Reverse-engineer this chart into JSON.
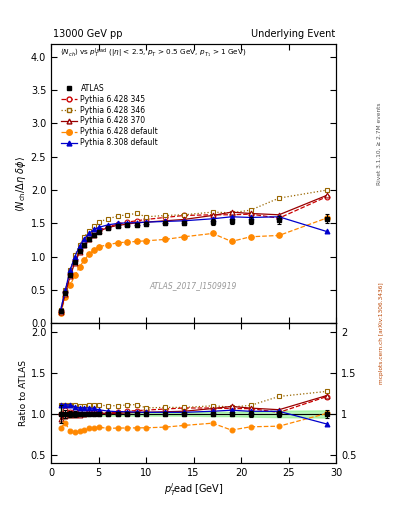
{
  "title_left": "13000 GeV pp",
  "title_right": "Underlying Event",
  "annotation": "ATLAS_2017_I1509919",
  "rivet_label": "Rivet 3.1.10, ≥ 2.7M events",
  "arxiv_label": "mcplots.cern.ch [arXiv:1306.3436]",
  "xlim": [
    0,
    30
  ],
  "main_ylim": [
    0,
    4.2
  ],
  "ratio_ylim": [
    0.4,
    2.1
  ],
  "atlas_x": [
    1.0,
    1.5,
    2.0,
    2.5,
    3.0,
    3.5,
    4.0,
    4.5,
    5.0,
    6.0,
    7.0,
    8.0,
    9.0,
    10.0,
    12.0,
    14.0,
    17.0,
    19.0,
    21.0,
    24.0,
    29.0
  ],
  "atlas_y": [
    0.18,
    0.45,
    0.72,
    0.92,
    1.08,
    1.18,
    1.26,
    1.32,
    1.37,
    1.43,
    1.46,
    1.47,
    1.48,
    1.49,
    1.5,
    1.51,
    1.52,
    1.53,
    1.54,
    1.55,
    1.57
  ],
  "atlas_yerr": [
    0.02,
    0.02,
    0.03,
    0.03,
    0.03,
    0.03,
    0.03,
    0.03,
    0.03,
    0.03,
    0.03,
    0.03,
    0.03,
    0.03,
    0.03,
    0.03,
    0.04,
    0.04,
    0.05,
    0.06,
    0.07
  ],
  "py6_345_x": [
    1.0,
    1.5,
    2.0,
    2.5,
    3.0,
    3.5,
    4.0,
    4.5,
    5.0,
    6.0,
    7.0,
    8.0,
    9.0,
    10.0,
    12.0,
    14.0,
    17.0,
    19.0,
    21.0,
    24.0,
    29.0
  ],
  "py6_345_y": [
    0.18,
    0.47,
    0.74,
    0.95,
    1.1,
    1.22,
    1.29,
    1.35,
    1.4,
    1.45,
    1.49,
    1.52,
    1.54,
    1.56,
    1.59,
    1.62,
    1.63,
    1.63,
    1.64,
    1.58,
    1.9
  ],
  "py6_346_x": [
    1.0,
    1.5,
    2.0,
    2.5,
    3.0,
    3.5,
    4.0,
    4.5,
    5.0,
    6.0,
    7.0,
    8.0,
    9.0,
    10.0,
    12.0,
    14.0,
    17.0,
    19.0,
    21.0,
    24.0,
    29.0
  ],
  "py6_346_y": [
    0.2,
    0.5,
    0.8,
    1.02,
    1.18,
    1.3,
    1.39,
    1.46,
    1.52,
    1.57,
    1.61,
    1.63,
    1.65,
    1.6,
    1.62,
    1.63,
    1.67,
    1.66,
    1.7,
    1.88,
    2.0
  ],
  "py6_370_x": [
    1.0,
    1.5,
    2.0,
    2.5,
    3.0,
    3.5,
    4.0,
    4.5,
    5.0,
    6.0,
    7.0,
    8.0,
    9.0,
    10.0,
    12.0,
    14.0,
    17.0,
    19.0,
    21.0,
    24.0,
    29.0
  ],
  "py6_370_y": [
    0.17,
    0.44,
    0.71,
    0.91,
    1.07,
    1.18,
    1.27,
    1.33,
    1.38,
    1.44,
    1.47,
    1.49,
    1.51,
    1.52,
    1.54,
    1.56,
    1.62,
    1.67,
    1.65,
    1.63,
    1.92
  ],
  "py6_def_x": [
    1.0,
    1.5,
    2.0,
    2.5,
    3.0,
    3.5,
    4.0,
    4.5,
    5.0,
    6.0,
    7.0,
    8.0,
    9.0,
    10.0,
    12.0,
    14.0,
    17.0,
    19.0,
    21.0,
    24.0,
    29.0
  ],
  "py6_def_y": [
    0.15,
    0.4,
    0.57,
    0.72,
    0.85,
    0.95,
    1.04,
    1.1,
    1.15,
    1.18,
    1.21,
    1.22,
    1.23,
    1.24,
    1.26,
    1.3,
    1.35,
    1.23,
    1.3,
    1.32,
    1.58
  ],
  "py8_def_x": [
    1.0,
    1.5,
    2.0,
    2.5,
    3.0,
    3.5,
    4.0,
    4.5,
    5.0,
    6.0,
    7.0,
    8.0,
    9.0,
    10.0,
    12.0,
    14.0,
    17.0,
    19.0,
    21.0,
    24.0,
    29.0
  ],
  "py8_def_y": [
    0.2,
    0.5,
    0.8,
    1.0,
    1.16,
    1.27,
    1.35,
    1.41,
    1.44,
    1.48,
    1.5,
    1.51,
    1.51,
    1.52,
    1.53,
    1.54,
    1.57,
    1.6,
    1.59,
    1.6,
    1.38
  ],
  "atlas_color": "#000000",
  "py6_345_color": "#cc0000",
  "py6_346_color": "#996600",
  "py6_370_color": "#990000",
  "py6_def_color": "#ff8800",
  "py8_def_color": "#0000cc",
  "ratio_band_color": "#88ee88",
  "ratio_band_alpha": 0.6
}
